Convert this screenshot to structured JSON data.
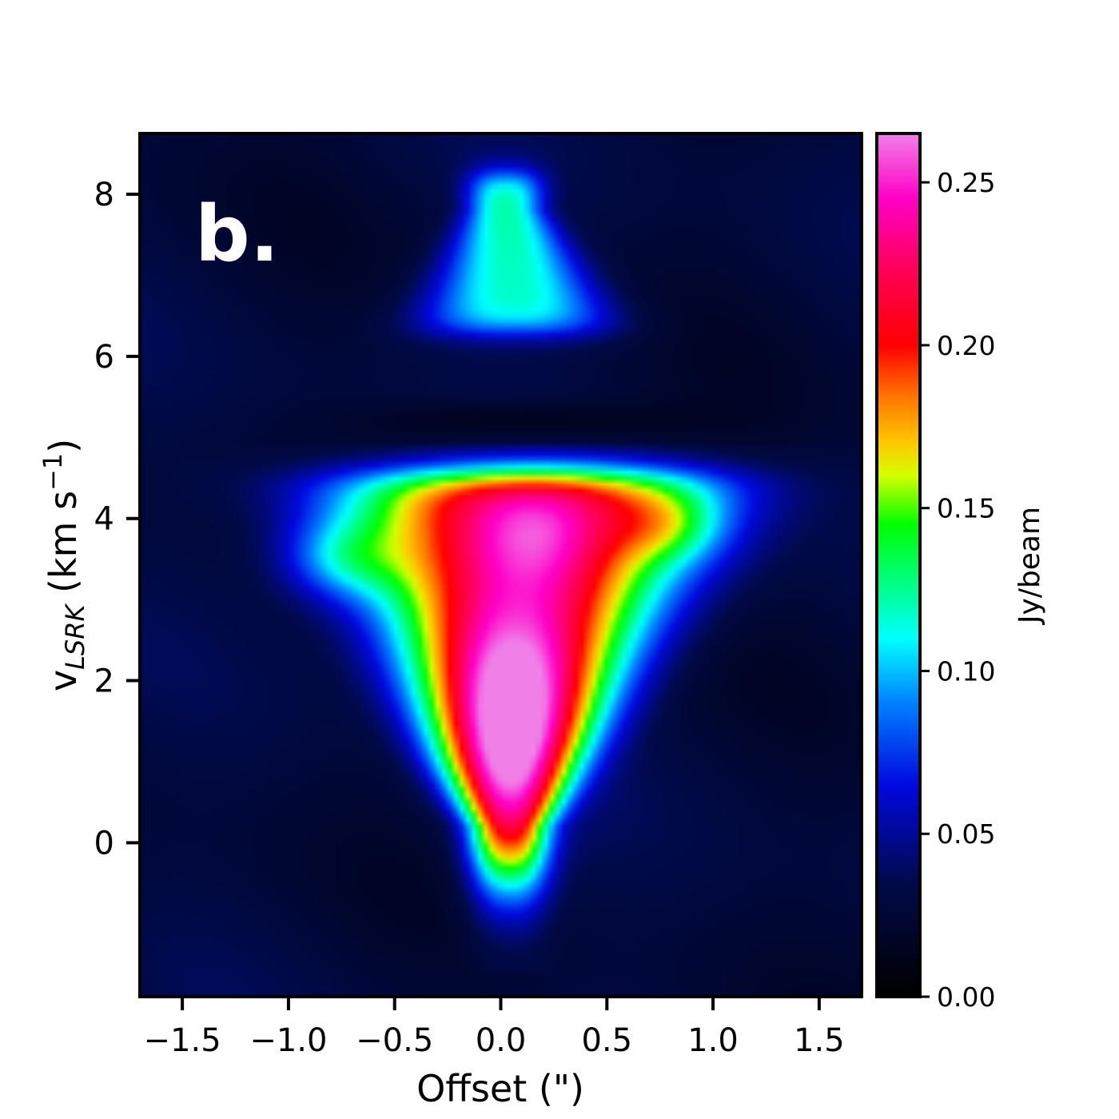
{
  "chart_data": {
    "type": "heatmap",
    "panel_label": "b.",
    "xlabel": "Offset (\")",
    "ylabel_main": "v",
    "ylabel_sub": "LSRK",
    "ylabel_rest": " (km s",
    "ylabel_sup": "−1",
    "ylabel_close": ")",
    "xlim": [
      -1.7,
      1.7
    ],
    "ylim": [
      -1.9,
      8.75
    ],
    "x_ticks": [
      -1.5,
      -1.0,
      -0.5,
      0.0,
      0.5,
      1.0,
      1.5
    ],
    "x_tick_labels": [
      "−1.5",
      "−1.0",
      "−0.5",
      "0.0",
      "0.5",
      "1.0",
      "1.5"
    ],
    "y_ticks": [
      0,
      2,
      4,
      6,
      8
    ],
    "y_tick_labels": [
      "0",
      "2",
      "4",
      "6",
      "8"
    ],
    "colorbar": {
      "label": "Jy/beam",
      "range": [
        0.0,
        0.265
      ],
      "ticks": [
        0.0,
        0.05,
        0.1,
        0.15,
        0.2,
        0.25
      ],
      "tick_labels": [
        "0.00",
        "0.05",
        "0.10",
        "0.15",
        "0.20",
        "0.25"
      ],
      "colormap": "gist_ncar-like",
      "stops": [
        {
          "v": 0.0,
          "color": "#000000"
        },
        {
          "v": 0.035,
          "color": "#000a4a"
        },
        {
          "v": 0.065,
          "color": "#0008e0"
        },
        {
          "v": 0.09,
          "color": "#0080ff"
        },
        {
          "v": 0.11,
          "color": "#00ffff"
        },
        {
          "v": 0.125,
          "color": "#00ff90"
        },
        {
          "v": 0.145,
          "color": "#00ff00"
        },
        {
          "v": 0.16,
          "color": "#d4ff00"
        },
        {
          "v": 0.17,
          "color": "#ffc800"
        },
        {
          "v": 0.185,
          "color": "#ff7000"
        },
        {
          "v": 0.2,
          "color": "#ff0000"
        },
        {
          "v": 0.225,
          "color": "#ff0060"
        },
        {
          "v": 0.245,
          "color": "#ff00c8"
        },
        {
          "v": 0.265,
          "color": "#f080e8"
        }
      ]
    },
    "emission_components": [
      {
        "name": "main",
        "x": 0.05,
        "y": 1.6,
        "peak": 0.262
      },
      {
        "name": "upper-red",
        "x": 0.1,
        "y": 3.8,
        "peak": 0.215
      },
      {
        "name": "upper-wing",
        "x": 0.0,
        "y": 3.4,
        "peak": 0.19
      },
      {
        "name": "high-velocity",
        "x": 0.0,
        "y": 7.0,
        "peak": 0.12
      },
      {
        "name": "high-velocity-top",
        "x": -0.02,
        "y": 8.1,
        "peak": 0.12
      }
    ]
  }
}
